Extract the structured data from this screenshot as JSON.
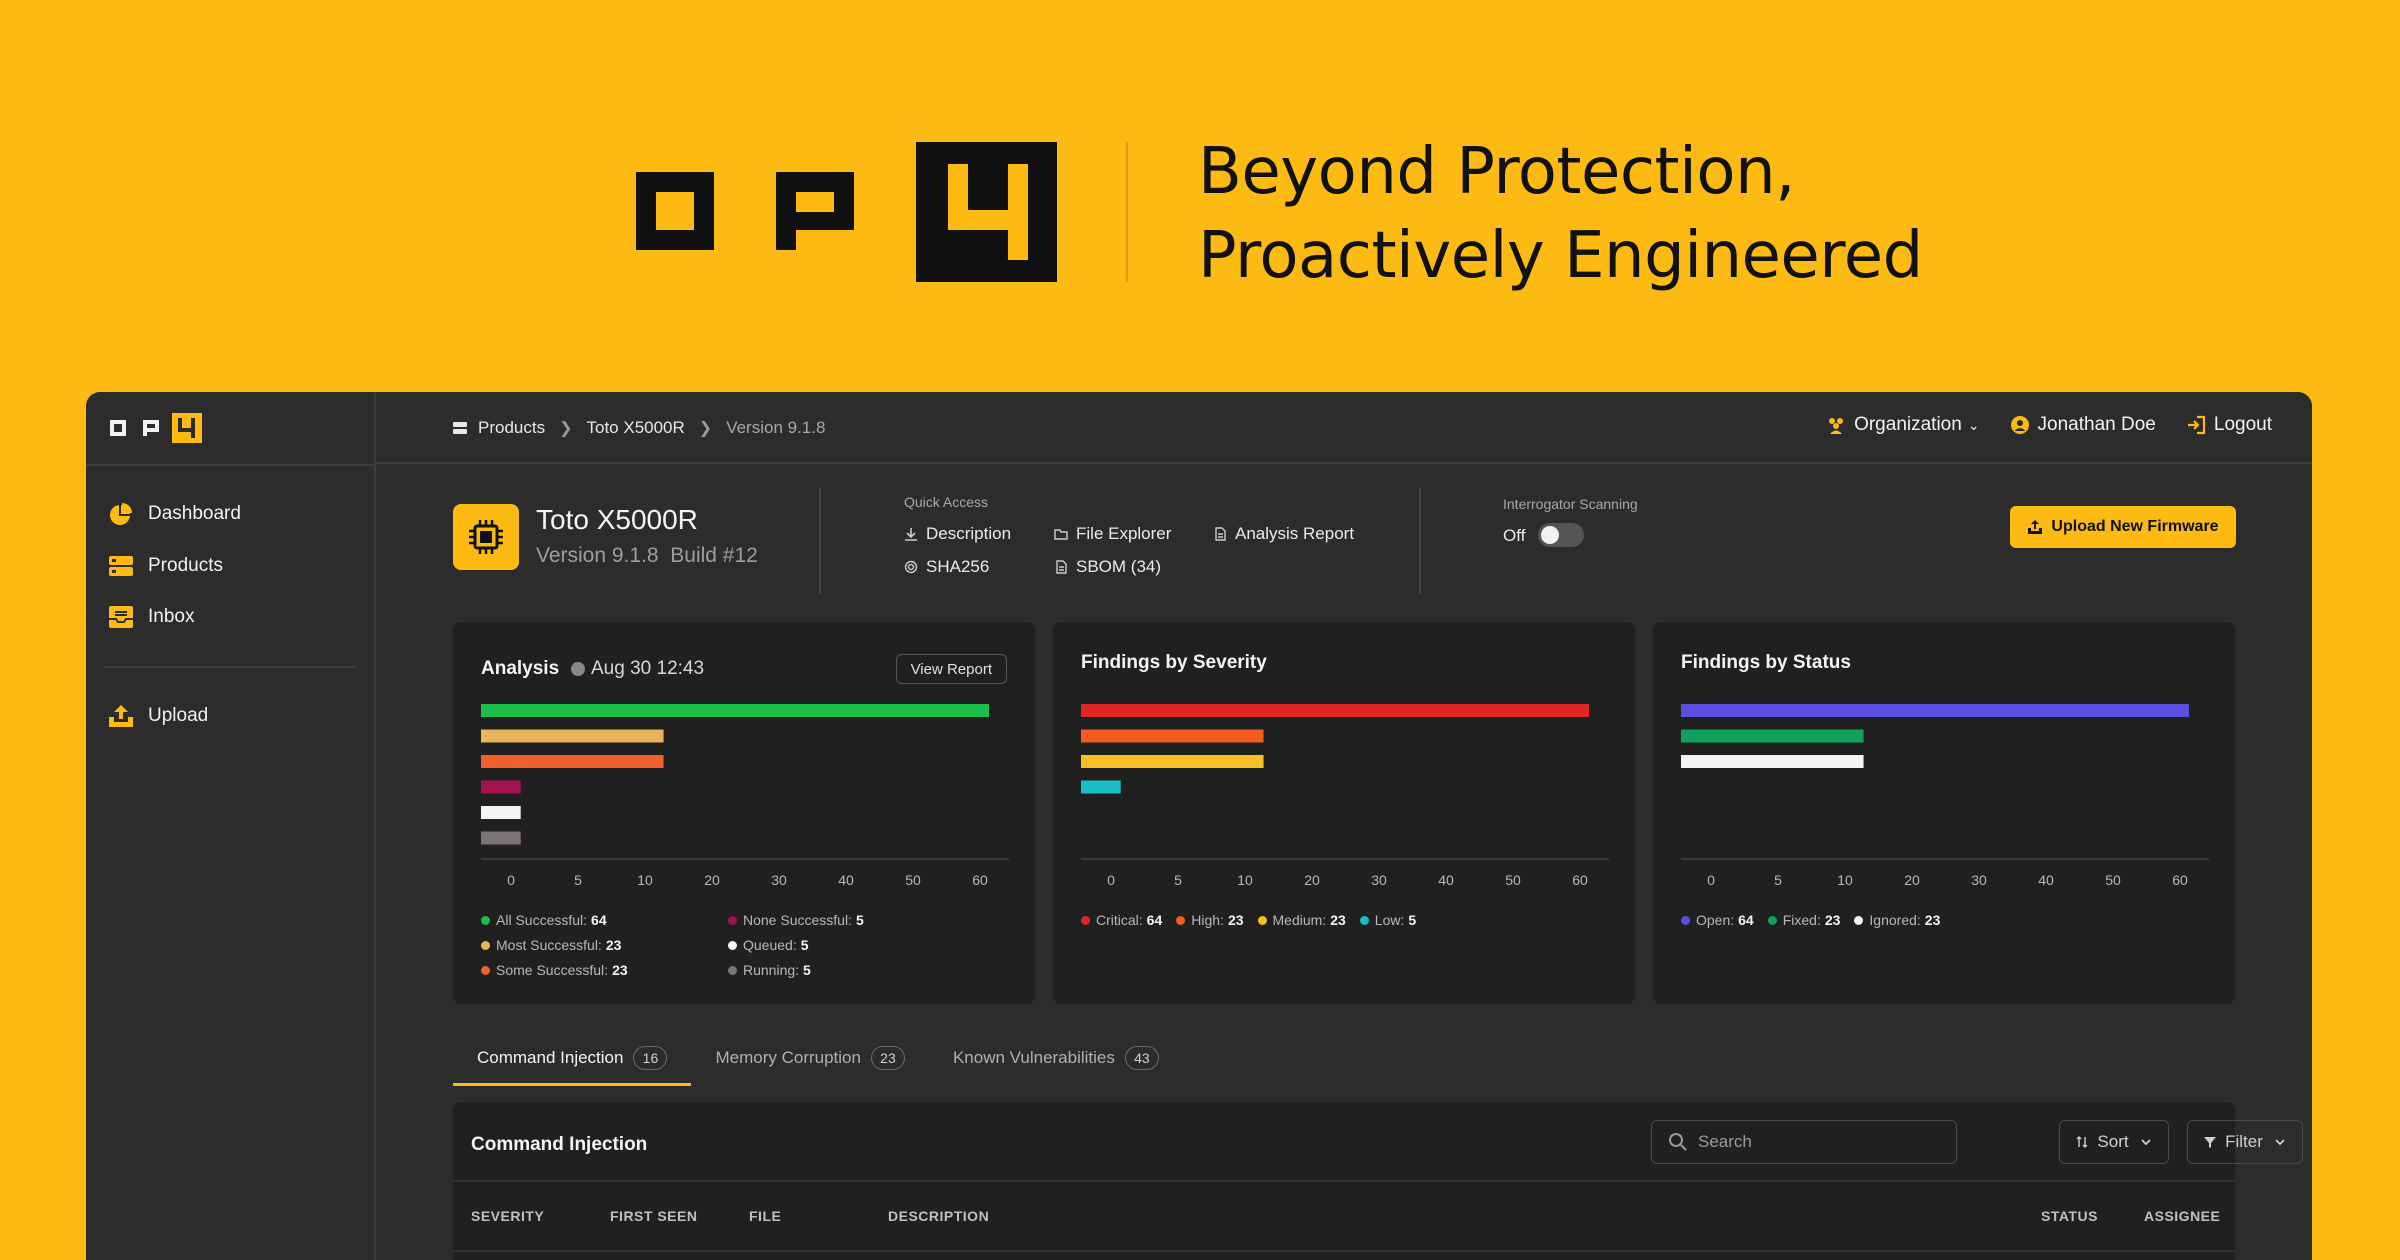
{
  "hero": {
    "tagline_line1": "Beyond Protection,",
    "tagline_line2": "Proactively Engineered"
  },
  "sidebar": {
    "items": [
      {
        "label": "Dashboard",
        "icon": "pie-chart-icon"
      },
      {
        "label": "Products",
        "icon": "server-icon"
      },
      {
        "label": "Inbox",
        "icon": "inbox-icon"
      },
      {
        "label": "Upload",
        "icon": "upload-icon"
      }
    ]
  },
  "breadcrumb": {
    "items": [
      "Products",
      "Toto X5000R",
      "Version 9.1.8"
    ]
  },
  "topbar": {
    "organization": "Organization",
    "user": "Jonathan Doe",
    "logout": "Logout"
  },
  "product": {
    "name": "Toto X5000R",
    "version": "Version 9.1.8",
    "build": "Build #12"
  },
  "quick_access": {
    "label": "Quick Access",
    "description": "Description",
    "file_explorer": "File Explorer",
    "analysis_report": "Analysis Report",
    "sha256": "SHA256",
    "sbom": "SBOM (34)"
  },
  "interrogator": {
    "label": "Interrogator Scanning",
    "state": "Off"
  },
  "upload_button": "Upload New Firmware",
  "cards": {
    "analysis": {
      "title": "Analysis",
      "time": "Aug 30 12:43",
      "view_report": "View Report"
    },
    "severity": {
      "title": "Findings by Severity"
    },
    "status": {
      "title": "Findings by Status"
    }
  },
  "chart_data": [
    {
      "type": "bar",
      "orientation": "horizontal",
      "title": "Analysis",
      "categories": [
        "All Successful",
        "Most Successful",
        "Some Successful",
        "None Successful",
        "Queued",
        "Running"
      ],
      "values": [
        64,
        23,
        23,
        5,
        5,
        5
      ],
      "colors": [
        "#1DBF4C",
        "#E9B45A",
        "#F0602A",
        "#A3124E",
        "#F4F4F4",
        "#7A7474"
      ],
      "xticks": [
        0,
        5,
        10,
        20,
        30,
        40,
        50,
        60
      ],
      "grid": false,
      "legend": "bottom"
    },
    {
      "type": "bar",
      "orientation": "horizontal",
      "title": "Findings by Severity",
      "categories": [
        "Critical",
        "High",
        "Medium",
        "Low"
      ],
      "values": [
        64,
        23,
        23,
        5
      ],
      "colors": [
        "#E22424",
        "#F25A1E",
        "#F6C026",
        "#18BFC6"
      ],
      "xticks": [
        0,
        5,
        10,
        20,
        30,
        40,
        50,
        60
      ],
      "grid": false,
      "legend": "bottom"
    },
    {
      "type": "bar",
      "orientation": "horizontal",
      "title": "Findings by Status",
      "categories": [
        "Open",
        "Fixed",
        "Ignored"
      ],
      "values": [
        64,
        23,
        23
      ],
      "colors": [
        "#5B4FE0",
        "#11A15C",
        "#F4F4F4"
      ],
      "xticks": [
        0,
        5,
        10,
        20,
        30,
        40,
        50,
        60
      ],
      "grid": false,
      "legend": "bottom"
    }
  ],
  "tabs": [
    {
      "label": "Command Injection",
      "count": "16"
    },
    {
      "label": "Memory Corruption",
      "count": "23"
    },
    {
      "label": "Known Vulnerabilities",
      "count": "43"
    }
  ],
  "table": {
    "title": "Command Injection",
    "search_placeholder": "Search",
    "sort": "Sort",
    "filter": "Filter",
    "columns": [
      "SEVERITY",
      "FIRST SEEN",
      "FILE",
      "DESCRIPTION",
      "STATUS",
      "ASSIGNEE"
    ]
  }
}
